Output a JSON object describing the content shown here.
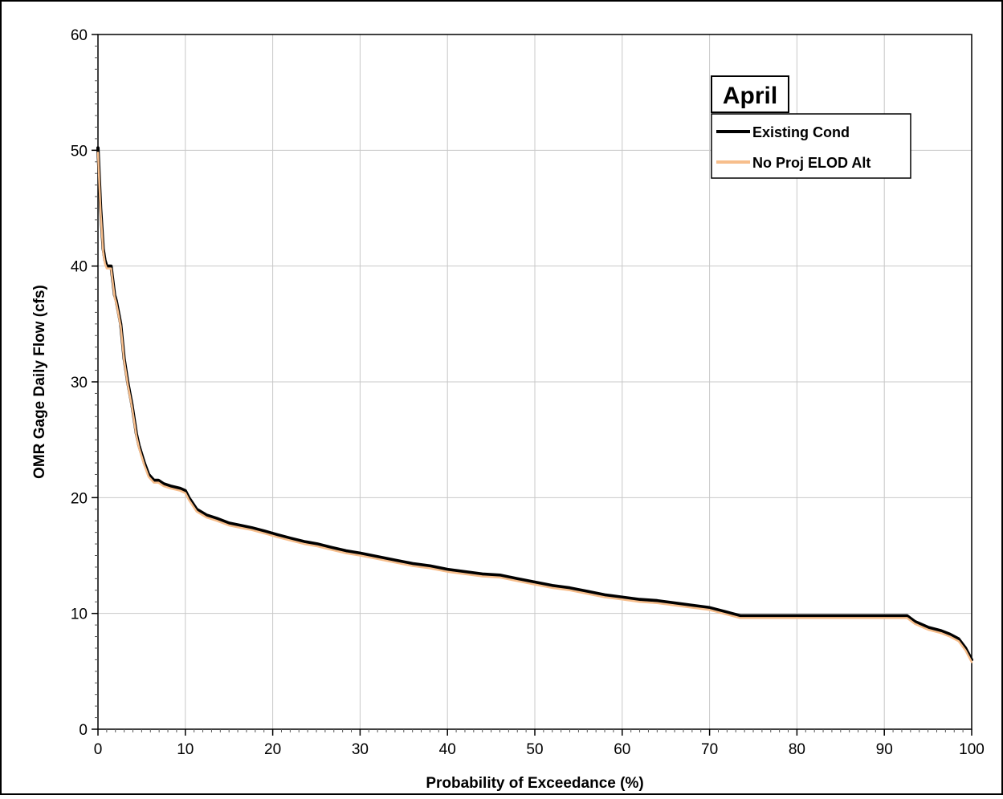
{
  "chart_data": {
    "type": "line",
    "title": "April",
    "xlabel": "Probability of Exceedance (%)",
    "ylabel": "OMR Gage Daily Flow (cfs)",
    "xlim": [
      0,
      100
    ],
    "ylim": [
      0,
      60
    ],
    "xticks": [
      0,
      10,
      20,
      30,
      40,
      50,
      60,
      70,
      80,
      90,
      100
    ],
    "yticks": [
      0,
      10,
      20,
      30,
      40,
      50,
      60
    ],
    "grid": true,
    "legend_position": "top-right",
    "series": [
      {
        "name": "Existing Cond",
        "color": "#000000",
        "x": [
          0,
          0.3,
          0.6,
          0.8,
          1.0,
          1.5,
          1.9,
          2.1,
          2.6,
          3.0,
          3.4,
          3.9,
          4.4,
          4.7,
          5.3,
          5.8,
          6.4,
          6.9,
          7.5,
          8.3,
          9.4,
          10.0,
          10.4,
          11.3,
          12.4,
          13.6,
          15.0,
          16.3,
          17.6,
          19.1,
          20.5,
          22.0,
          23.6,
          25.1,
          26.7,
          28.4,
          30.0,
          32.0,
          34.0,
          36.0,
          38.0,
          40.0,
          42.0,
          44.0,
          46.0,
          48.0,
          50.0,
          52.0,
          54.0,
          56.0,
          58.0,
          60.0,
          62.0,
          64.0,
          66.0,
          68.0,
          70.0,
          72.0,
          73.5,
          80.0,
          85.0,
          90.0,
          92.6,
          93.5,
          95.0,
          96.5,
          97.5,
          98.5,
          99.3,
          100
        ],
        "values": [
          50.2,
          45.0,
          41.5,
          40.5,
          40.0,
          40.0,
          37.5,
          37.0,
          35.0,
          32.0,
          30.0,
          28.0,
          25.5,
          24.5,
          23.0,
          22.0,
          21.5,
          21.5,
          21.2,
          21.0,
          20.8,
          20.6,
          20.0,
          19.0,
          18.5,
          18.2,
          17.8,
          17.6,
          17.4,
          17.1,
          16.8,
          16.5,
          16.2,
          16.0,
          15.7,
          15.4,
          15.2,
          14.9,
          14.6,
          14.3,
          14.1,
          13.8,
          13.6,
          13.4,
          13.3,
          13.0,
          12.7,
          12.4,
          12.2,
          11.9,
          11.6,
          11.4,
          11.2,
          11.1,
          10.9,
          10.7,
          10.5,
          10.1,
          9.8,
          9.8,
          9.8,
          9.8,
          9.8,
          9.3,
          8.8,
          8.5,
          8.2,
          7.8,
          7.0,
          6.0
        ]
      },
      {
        "name": "No Proj ELOD Alt",
        "color": "#F7BE8C",
        "x": [
          0,
          0.3,
          0.6,
          0.8,
          1.0,
          1.5,
          1.9,
          2.1,
          2.6,
          3.0,
          3.4,
          3.9,
          4.4,
          4.7,
          5.3,
          5.8,
          6.4,
          6.9,
          7.5,
          8.3,
          9.4,
          10.0,
          10.4,
          11.3,
          12.4,
          13.6,
          15.0,
          16.3,
          17.6,
          19.1,
          20.5,
          22.0,
          23.6,
          25.1,
          26.7,
          28.4,
          30.0,
          32.0,
          34.0,
          36.0,
          38.0,
          40.0,
          42.0,
          44.0,
          46.0,
          48.0,
          50.0,
          52.0,
          54.0,
          56.0,
          58.0,
          60.0,
          62.0,
          64.0,
          66.0,
          68.0,
          70.0,
          72.0,
          73.5,
          80.0,
          85.0,
          90.0,
          92.6,
          93.5,
          95.0,
          96.5,
          97.5,
          98.5,
          99.3,
          100
        ],
        "values": [
          49.8,
          44.6,
          41.2,
          40.2,
          39.8,
          39.8,
          37.3,
          36.8,
          34.8,
          31.8,
          29.8,
          27.8,
          25.3,
          24.3,
          22.8,
          21.8,
          21.3,
          21.3,
          21.0,
          20.8,
          20.6,
          20.4,
          19.8,
          18.8,
          18.3,
          18.0,
          17.6,
          17.4,
          17.2,
          16.9,
          16.6,
          16.3,
          16.0,
          15.8,
          15.5,
          15.2,
          15.0,
          14.7,
          14.4,
          14.1,
          13.9,
          13.6,
          13.4,
          13.2,
          13.1,
          12.8,
          12.5,
          12.2,
          12.0,
          11.7,
          11.4,
          11.2,
          11.0,
          10.9,
          10.7,
          10.5,
          10.3,
          9.9,
          9.6,
          9.6,
          9.6,
          9.6,
          9.6,
          9.1,
          8.6,
          8.3,
          8.0,
          7.6,
          6.8,
          5.8
        ]
      }
    ]
  }
}
